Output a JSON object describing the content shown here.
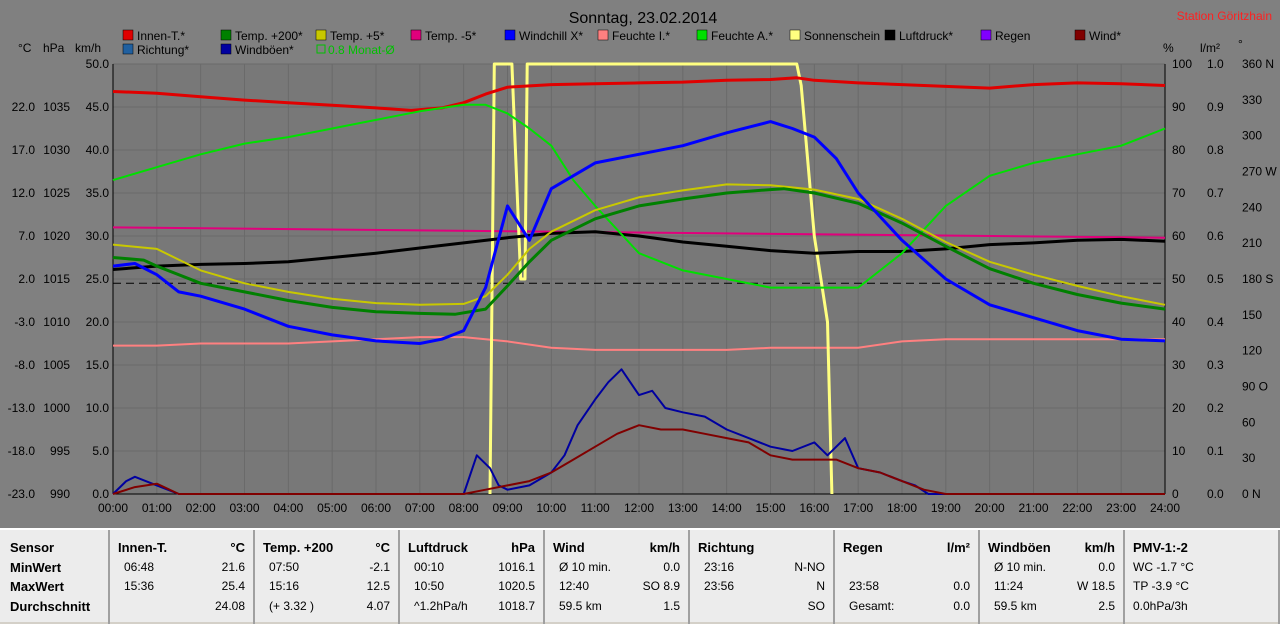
{
  "chart_data": {
    "type": "line",
    "title": "Sonntag, 23.02.2014",
    "station": "Station Göritzhain",
    "legend": [
      {
        "name": "Innen-T.*",
        "color": "#e00000"
      },
      {
        "name": "Temp. +200*",
        "color": "#008000"
      },
      {
        "name": "Temp. +5*",
        "color": "#c8c800"
      },
      {
        "name": "Temp. -5*",
        "color": "#e0007c"
      },
      {
        "name": "Windchill X*",
        "color": "#0000ff"
      },
      {
        "name": "Feuchte I.*",
        "color": "#ff8080"
      },
      {
        "name": "Feuchte A.*",
        "color": "#00e000"
      },
      {
        "name": "Sonnenschein",
        "color": "#ffff80"
      },
      {
        "name": "Luftdruck*",
        "color": "#000000"
      },
      {
        "name": "Regen",
        "color": "#8000ff"
      },
      {
        "name": "Wind*",
        "color": "#800000"
      },
      {
        "name": "Richtung*",
        "color": "#2060a0"
      },
      {
        "name": "Windböen*",
        "color": "#0000a0"
      },
      {
        "name": "0.8 Monat-Ø",
        "color": "#00c000"
      }
    ],
    "axis_units": {
      "temp": "°C",
      "pressure": "hPa",
      "wind": "km/h",
      "percent": "%",
      "rain": "l/m²",
      "direction": "°"
    },
    "x_ticks": [
      "00:00",
      "01:00",
      "02:00",
      "03:00",
      "04:00",
      "05:00",
      "06:00",
      "07:00",
      "08:00",
      "09:00",
      "10:00",
      "11:00",
      "12:00",
      "13:00",
      "14:00",
      "15:00",
      "16:00",
      "17:00",
      "18:00",
      "19:00",
      "20:00",
      "21:00",
      "22:00",
      "23:00",
      "24:00"
    ],
    "y_temp_ticks": [
      "22.0",
      "17.0",
      "12.0",
      "7.0",
      "2.0",
      "-3.0",
      "-8.0",
      "-13.0",
      "-18.0",
      "-23.0"
    ],
    "y_pressure_ticks": [
      "1035",
      "1030",
      "1025",
      "1020",
      "1015",
      "1010",
      "1005",
      "1000",
      "995",
      "990"
    ],
    "y_wind_ticks": [
      "50.0",
      "45.0",
      "40.0",
      "35.0",
      "30.0",
      "25.0",
      "20.0",
      "15.0",
      "10.0",
      "5.0",
      "0.0"
    ],
    "y_percent_ticks": [
      "100",
      "90",
      "80",
      "70",
      "60",
      "50",
      "40",
      "30",
      "20",
      "10",
      "0"
    ],
    "y_rain_ticks": [
      "1.0",
      "0.9",
      "0.8",
      "0.7",
      "0.6",
      "0.5",
      "0.4",
      "0.3",
      "0.2",
      "0.1",
      "0.0"
    ],
    "y_dir_ticks": [
      "360 N",
      "330",
      "300",
      "270 W",
      "240",
      "210",
      "180 S",
      "150",
      "120",
      "90 O",
      "60",
      "30",
      "0 N"
    ],
    "xlim": [
      0,
      24
    ],
    "series": [
      {
        "name": "Innen-T.*",
        "axis": "temp",
        "x": [
          0,
          1,
          2,
          3,
          4,
          5,
          6,
          6.8,
          7.5,
          8,
          8.5,
          9,
          10,
          11,
          12,
          13,
          14,
          15,
          15.6,
          16,
          17,
          18,
          19,
          20,
          21,
          22,
          23,
          24
        ],
        "y": [
          23.8,
          23.6,
          23.2,
          22.8,
          22.5,
          22.2,
          21.9,
          21.6,
          21.9,
          22.5,
          23.5,
          24.3,
          24.6,
          24.7,
          24.8,
          24.9,
          25.1,
          25.2,
          25.4,
          25.1,
          24.8,
          24.6,
          24.4,
          24.2,
          24.6,
          24.8,
          24.7,
          24.5
        ]
      },
      {
        "name": "Temp. +200*",
        "axis": "temp",
        "x": [
          0,
          0.7,
          1,
          2,
          3,
          4,
          5,
          6,
          7,
          7.8,
          8.5,
          9,
          9.5,
          10,
          11,
          12,
          13,
          14,
          15,
          15.3,
          16,
          17,
          18,
          19,
          20,
          21,
          22,
          23,
          24
        ],
        "y": [
          4.5,
          4.2,
          3.5,
          1.5,
          0.5,
          -0.5,
          -1.3,
          -1.8,
          -2.0,
          -2.1,
          -1.5,
          1.2,
          4.0,
          6.5,
          9.0,
          10.5,
          11.3,
          12.0,
          12.4,
          12.5,
          12.0,
          10.8,
          8.5,
          5.8,
          3.2,
          1.5,
          0.2,
          -0.8,
          -1.5
        ]
      },
      {
        "name": "Temp. +5*",
        "axis": "temp",
        "x": [
          0,
          1,
          2,
          3,
          4,
          5,
          6,
          7,
          8,
          8.5,
          9,
          9.5,
          10,
          11,
          12,
          13,
          14,
          15,
          16,
          17,
          18,
          19,
          20,
          21,
          22,
          23,
          24
        ],
        "y": [
          6.0,
          5.5,
          3.0,
          1.5,
          0.5,
          -0.3,
          -0.8,
          -1.0,
          -0.9,
          0,
          2.5,
          5.5,
          7.5,
          10.0,
          11.5,
          12.3,
          13.0,
          12.9,
          12.4,
          11.3,
          9.0,
          6.3,
          4.0,
          2.5,
          1.2,
          0.0,
          -1.0
        ]
      },
      {
        "name": "Temp. -5*",
        "axis": "temp",
        "x": [
          0,
          24
        ],
        "y": [
          8.0,
          6.8
        ]
      },
      {
        "name": "Windchill X*",
        "axis": "temp",
        "x": [
          0,
          0.5,
          1,
          1.5,
          2,
          3,
          4,
          5,
          6,
          7,
          7.5,
          8,
          8.5,
          9,
          9.5,
          10,
          11,
          12,
          13,
          14,
          15,
          15.5,
          16,
          16.5,
          17,
          18,
          19,
          20,
          21,
          22,
          23,
          24
        ],
        "y": [
          3.5,
          3.8,
          2.5,
          0.5,
          0,
          -1.5,
          -3.5,
          -4.5,
          -5.2,
          -5.5,
          -5.0,
          -4.0,
          1.0,
          10.5,
          6.5,
          12.5,
          15.5,
          16.5,
          17.5,
          19.0,
          20.3,
          19.5,
          18.5,
          16.0,
          12.0,
          6.5,
          2.0,
          -1.0,
          -2.5,
          -4.0,
          -5.0,
          -5.2
        ]
      },
      {
        "name": "Feuchte I.*",
        "axis": "percent",
        "x": [
          0,
          1,
          2,
          3,
          4,
          5,
          6,
          7,
          8,
          9,
          10,
          11,
          12,
          13,
          14,
          15,
          16,
          17,
          18,
          19,
          20,
          21,
          22,
          23,
          24
        ],
        "y": [
          34.5,
          34.5,
          35,
          35,
          35,
          35.5,
          36,
          36.5,
          36.5,
          35.5,
          34,
          33.5,
          33.5,
          33.5,
          33.5,
          34,
          34,
          34,
          35.5,
          36,
          36,
          36,
          36,
          36,
          36
        ]
      },
      {
        "name": "Feuchte A.*",
        "axis": "percent",
        "x": [
          0,
          1,
          2,
          3,
          4,
          5,
          6,
          7,
          8,
          8.5,
          9,
          9.5,
          10,
          10.5,
          11,
          12,
          13,
          14,
          15,
          16,
          17,
          18,
          19,
          20,
          21,
          22,
          23,
          24
        ],
        "y": [
          73,
          76,
          79,
          81.5,
          83,
          85,
          87,
          89,
          90.5,
          90.5,
          88.5,
          85,
          81,
          73,
          67,
          56,
          52,
          50,
          48,
          48,
          48,
          56,
          67,
          74,
          77,
          79,
          81,
          85
        ]
      },
      {
        "name": "Luftdruck*",
        "axis": "pressure",
        "x": [
          0,
          1,
          2,
          3,
          4,
          5,
          6,
          7,
          8,
          9,
          10,
          11,
          12,
          13,
          14,
          15,
          16,
          17,
          18,
          19,
          20,
          21,
          22,
          23,
          24
        ],
        "y": [
          1016.1,
          1016.5,
          1016.7,
          1016.8,
          1017.0,
          1017.5,
          1018.0,
          1018.6,
          1019.2,
          1019.8,
          1020.3,
          1020.5,
          1020.0,
          1019.3,
          1018.8,
          1018.3,
          1018.0,
          1018.2,
          1018.2,
          1018.5,
          1019.0,
          1019.2,
          1019.5,
          1019.6,
          1019.4
        ]
      },
      {
        "name": "Windböen*",
        "axis": "wind",
        "x": [
          0,
          0.3,
          0.5,
          1,
          1.5,
          8,
          8.3,
          8.6,
          8.8,
          9,
          9.5,
          10,
          10.3,
          10.6,
          11,
          11.3,
          11.6,
          12,
          12.3,
          12.6,
          13,
          13.5,
          14,
          14.5,
          15,
          15.5,
          16,
          16.3,
          16.7,
          17,
          17.5,
          18,
          18.3,
          18.6,
          19,
          24
        ],
        "y": [
          0,
          1.5,
          2,
          1,
          0,
          0,
          4.5,
          3,
          1,
          0.5,
          1,
          2.5,
          4.5,
          8,
          11,
          13,
          14.5,
          11.5,
          12,
          10,
          9.5,
          9,
          7.5,
          6.5,
          5.5,
          5,
          6,
          4.5,
          6.5,
          3,
          2.5,
          1.5,
          1,
          0,
          0,
          0
        ]
      },
      {
        "name": "Wind*",
        "axis": "wind",
        "x": [
          0,
          0.5,
          1,
          1.5,
          8,
          8.5,
          9,
          9.5,
          10,
          10.5,
          11,
          11.5,
          12,
          12.5,
          13,
          13.5,
          14,
          14.5,
          15,
          15.5,
          16,
          16.5,
          17,
          17.5,
          18,
          18.5,
          19,
          24
        ],
        "y": [
          0,
          0.8,
          1.2,
          0,
          0,
          0.5,
          1,
          1.5,
          2.5,
          4,
          5.5,
          7,
          8,
          7.5,
          7.5,
          7,
          6.5,
          6,
          4.5,
          4,
          4,
          4,
          3,
          2.5,
          1.5,
          0.5,
          0,
          0
        ]
      },
      {
        "name": "Sonnenschein",
        "axis": "percent",
        "x": [
          8.6,
          8.7,
          9.1,
          9.3,
          9.4,
          9.45,
          9.5,
          15.6,
          15.7,
          16.0,
          16.15,
          16.3,
          16.4
        ],
        "y": [
          0,
          100,
          100,
          50,
          50,
          100,
          100,
          100,
          95,
          60,
          50,
          40,
          0
        ]
      },
      {
        "name": "0.8 Monat-Ø",
        "axis": "wind",
        "x": [
          0,
          24
        ],
        "y": [
          24.5,
          24.5
        ]
      }
    ],
    "direction_points_note": ""
  },
  "stats": {
    "sensor": {
      "header": "Sensor",
      "rows": [
        "MinWert",
        "MaxWert",
        "Durchschnitt"
      ]
    },
    "innen": {
      "header": "Innen-T.",
      "unit": "°C",
      "rows": [
        [
          "06:48",
          "21.6"
        ],
        [
          "15:36",
          "25.4"
        ],
        [
          "",
          "24.08"
        ]
      ]
    },
    "temp200": {
      "header": "Temp. +200",
      "unit": "°C",
      "rows": [
        [
          "07:50",
          "-2.1"
        ],
        [
          "15:16",
          "12.5"
        ],
        [
          "(+ 3.32 )",
          "4.07"
        ]
      ]
    },
    "luftdruck": {
      "header": "Luftdruck",
      "unit": "hPa",
      "rows": [
        [
          "00:10",
          "1016.1"
        ],
        [
          "10:50",
          "1020.5"
        ],
        [
          "^1.2hPa/h",
          "1018.7"
        ]
      ]
    },
    "wind": {
      "header": "Wind",
      "unit": "km/h",
      "rows": [
        [
          "Ø 10 min.",
          "0.0"
        ],
        [
          "12:40",
          "SO 8.9"
        ],
        [
          "59.5 km",
          "1.5"
        ]
      ]
    },
    "richtung": {
      "header": "Richtung",
      "unit": "",
      "rows": [
        [
          "23:16",
          "N-NO"
        ],
        [
          "23:56",
          "N"
        ],
        [
          "",
          "SO"
        ]
      ]
    },
    "regen": {
      "header": "Regen",
      "unit": "l/m²",
      "rows": [
        [
          "",
          ""
        ],
        [
          "23:58",
          "0.0"
        ],
        [
          "Gesamt:",
          "0.0"
        ]
      ]
    },
    "boeen": {
      "header": "Windböen",
      "unit": "km/h",
      "rows": [
        [
          "Ø 10 min.",
          "0.0"
        ],
        [
          "11:24",
          "W 18.5"
        ],
        [
          "59.5 km",
          "2.5"
        ]
      ]
    },
    "pmv": {
      "header": "PMV-1:-2",
      "rows": [
        "WC -1.7 °C",
        "TP -3.9 °C",
        "0.0hPa/3h"
      ]
    }
  }
}
